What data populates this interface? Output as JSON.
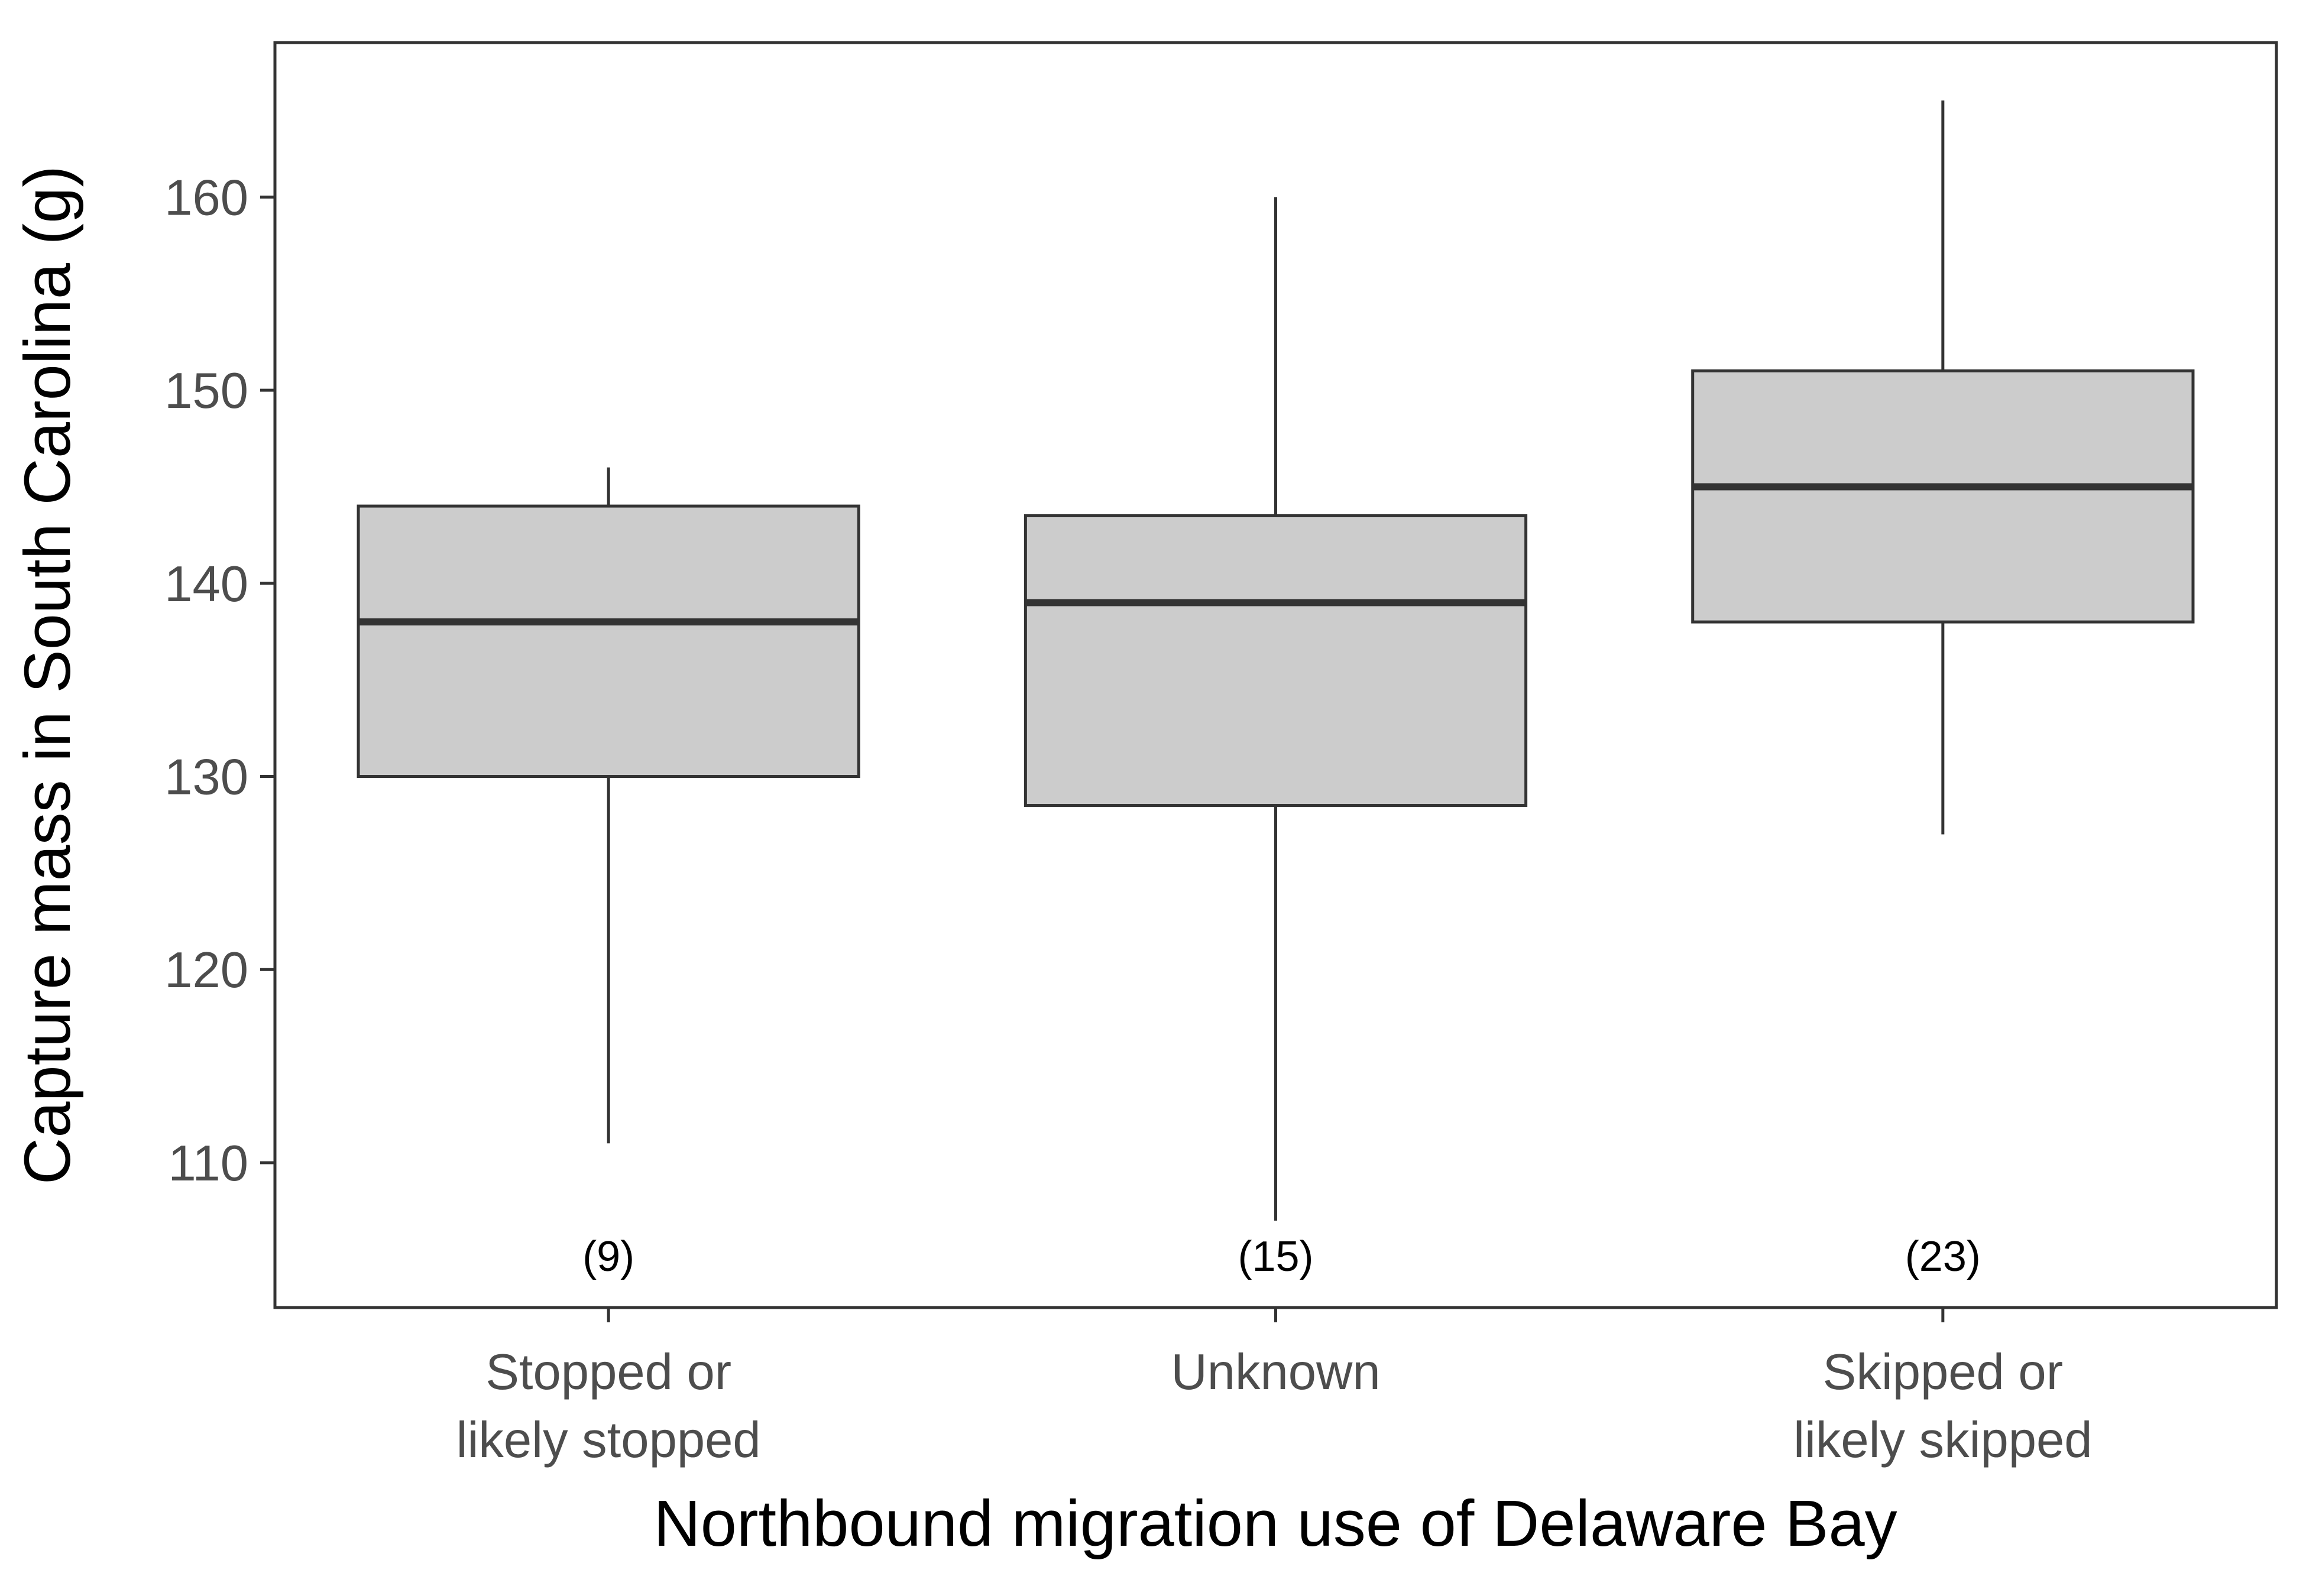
{
  "chart_data": {
    "type": "boxplot",
    "title": "",
    "xlabel": "Northbound migration use of Delaware Bay",
    "ylabel": "Capture mass in South Carolina (g)",
    "ylim": [
      102.5,
      168
    ],
    "yticks": [
      110,
      120,
      130,
      140,
      150,
      160
    ],
    "grid": false,
    "categories": [
      {
        "label_lines": [
          "Stopped or",
          "likely stopped"
        ],
        "n_label": "(9)",
        "min": 111,
        "q1": 130,
        "median": 138,
        "q3": 144,
        "max": 146
      },
      {
        "label_lines": [
          "Unknown"
        ],
        "n_label": "(15)",
        "min": 107,
        "q1": 128.5,
        "median": 139,
        "q3": 143.5,
        "max": 160
      },
      {
        "label_lines": [
          "Skipped or",
          "likely skipped"
        ],
        "n_label": "(23)",
        "min": 127,
        "q1": 138,
        "median": 145,
        "q3": 151,
        "max": 165
      }
    ],
    "colors": {
      "box_fill": "#cccccc",
      "stroke": "#333333",
      "tick_text": "#4d4d4d",
      "title_text": "#000000"
    }
  }
}
